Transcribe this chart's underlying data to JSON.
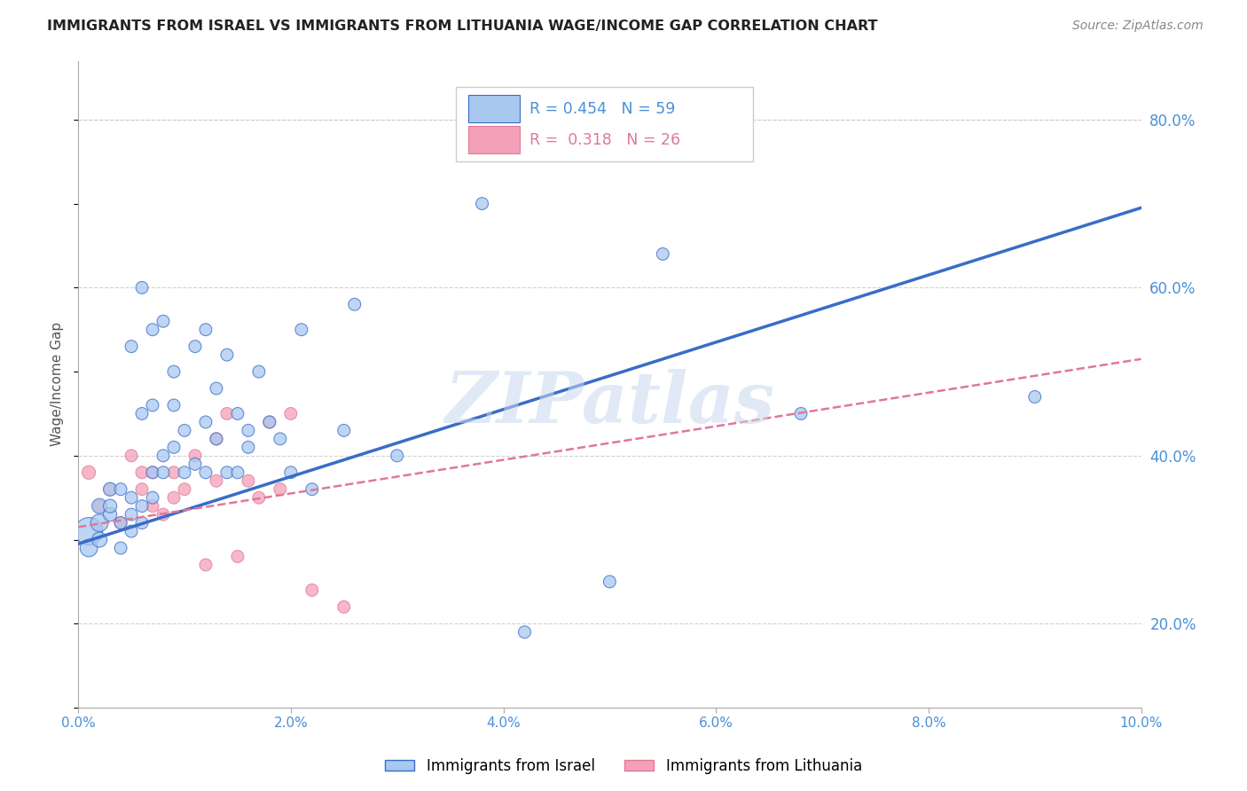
{
  "title": "IMMIGRANTS FROM ISRAEL VS IMMIGRANTS FROM LITHUANIA WAGE/INCOME GAP CORRELATION CHART",
  "source": "Source: ZipAtlas.com",
  "ylabel": "Wage/Income Gap",
  "watermark": "ZIPatlas",
  "legend_israel": "Immigrants from Israel",
  "legend_lithuania": "Immigrants from Lithuania",
  "r_israel": 0.454,
  "n_israel": 59,
  "r_lithuania": 0.318,
  "n_lithuania": 26,
  "xlim": [
    0.0,
    0.1
  ],
  "ylim": [
    0.1,
    0.87
  ],
  "right_yticks": [
    0.2,
    0.4,
    0.6,
    0.8
  ],
  "right_yticklabels": [
    "20.0%",
    "40.0%",
    "60.0%",
    "80.0%"
  ],
  "xticks": [
    0.0,
    0.02,
    0.04,
    0.06,
    0.08,
    0.1
  ],
  "xticklabels": [
    "0.0%",
    "2.0%",
    "4.0%",
    "6.0%",
    "8.0%",
    "10.0%"
  ],
  "color_israel": "#A8C8F0",
  "color_lithuania": "#F4A0B8",
  "color_trend_israel": "#3A6CC8",
  "color_trend_lithuania": "#E07898",
  "background_color": "#FFFFFF",
  "grid_color": "#CCCCCC",
  "title_color": "#222222",
  "right_axis_color": "#4A90D9",
  "watermark_color": "#C8D8EE",
  "israel_x": [
    0.001,
    0.001,
    0.002,
    0.002,
    0.002,
    0.003,
    0.003,
    0.003,
    0.004,
    0.004,
    0.004,
    0.005,
    0.005,
    0.005,
    0.005,
    0.006,
    0.006,
    0.006,
    0.006,
    0.007,
    0.007,
    0.007,
    0.007,
    0.008,
    0.008,
    0.008,
    0.009,
    0.009,
    0.009,
    0.01,
    0.01,
    0.011,
    0.011,
    0.012,
    0.012,
    0.012,
    0.013,
    0.013,
    0.014,
    0.014,
    0.015,
    0.015,
    0.016,
    0.016,
    0.017,
    0.018,
    0.019,
    0.02,
    0.021,
    0.022,
    0.025,
    0.026,
    0.03,
    0.038,
    0.042,
    0.05,
    0.055,
    0.068,
    0.09
  ],
  "israel_y": [
    0.31,
    0.29,
    0.32,
    0.3,
    0.34,
    0.33,
    0.34,
    0.36,
    0.29,
    0.32,
    0.36,
    0.31,
    0.33,
    0.35,
    0.53,
    0.32,
    0.34,
    0.45,
    0.6,
    0.35,
    0.38,
    0.46,
    0.55,
    0.38,
    0.4,
    0.56,
    0.41,
    0.46,
    0.5,
    0.38,
    0.43,
    0.39,
    0.53,
    0.38,
    0.44,
    0.55,
    0.42,
    0.48,
    0.38,
    0.52,
    0.38,
    0.45,
    0.41,
    0.43,
    0.5,
    0.44,
    0.42,
    0.38,
    0.55,
    0.36,
    0.43,
    0.58,
    0.4,
    0.7,
    0.19,
    0.25,
    0.64,
    0.45,
    0.47
  ],
  "israel_sizes": [
    500,
    200,
    200,
    150,
    150,
    120,
    120,
    120,
    100,
    100,
    100,
    100,
    100,
    100,
    100,
    100,
    100,
    100,
    100,
    100,
    100,
    100,
    100,
    100,
    100,
    100,
    100,
    100,
    100,
    100,
    100,
    100,
    100,
    100,
    100,
    100,
    100,
    100,
    100,
    100,
    100,
    100,
    100,
    100,
    100,
    100,
    100,
    100,
    100,
    100,
    100,
    100,
    100,
    100,
    100,
    100,
    100,
    100,
    100
  ],
  "lithuania_x": [
    0.001,
    0.002,
    0.003,
    0.004,
    0.005,
    0.006,
    0.006,
    0.007,
    0.007,
    0.008,
    0.009,
    0.009,
    0.01,
    0.011,
    0.012,
    0.013,
    0.013,
    0.014,
    0.015,
    0.016,
    0.017,
    0.018,
    0.019,
    0.02,
    0.022,
    0.025
  ],
  "lithuania_y": [
    0.38,
    0.34,
    0.36,
    0.32,
    0.4,
    0.36,
    0.38,
    0.34,
    0.38,
    0.33,
    0.35,
    0.38,
    0.36,
    0.4,
    0.27,
    0.42,
    0.37,
    0.45,
    0.28,
    0.37,
    0.35,
    0.44,
    0.36,
    0.45,
    0.24,
    0.22
  ],
  "lithuania_sizes": [
    120,
    100,
    100,
    100,
    100,
    100,
    100,
    100,
    100,
    100,
    100,
    100,
    100,
    100,
    100,
    100,
    100,
    100,
    100,
    100,
    100,
    100,
    100,
    100,
    100,
    100
  ],
  "trend_israel_x0": 0.0,
  "trend_israel_x1": 0.1,
  "trend_israel_y0": 0.295,
  "trend_israel_y1": 0.695,
  "trend_lith_x0": 0.0,
  "trend_lith_x1": 0.1,
  "trend_lith_y0": 0.315,
  "trend_lith_y1": 0.515
}
